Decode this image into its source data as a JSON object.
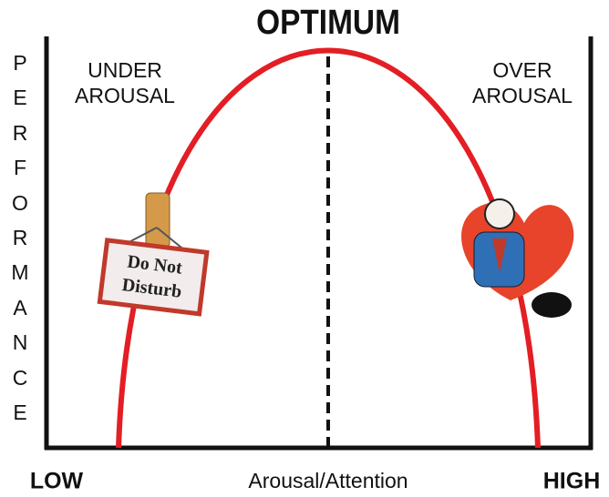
{
  "title": "OPTIMUM",
  "y_axis_label": "PERFORMANCE",
  "x_axis_label": "Arousal/Attention",
  "x_low": "LOW",
  "x_high": "HIGH",
  "left_label": [
    "UNDER",
    "AROUSAL"
  ],
  "right_label": [
    "OVER",
    "AROUSAL"
  ],
  "sign": [
    "Do Not",
    "Disturb"
  ]
}
